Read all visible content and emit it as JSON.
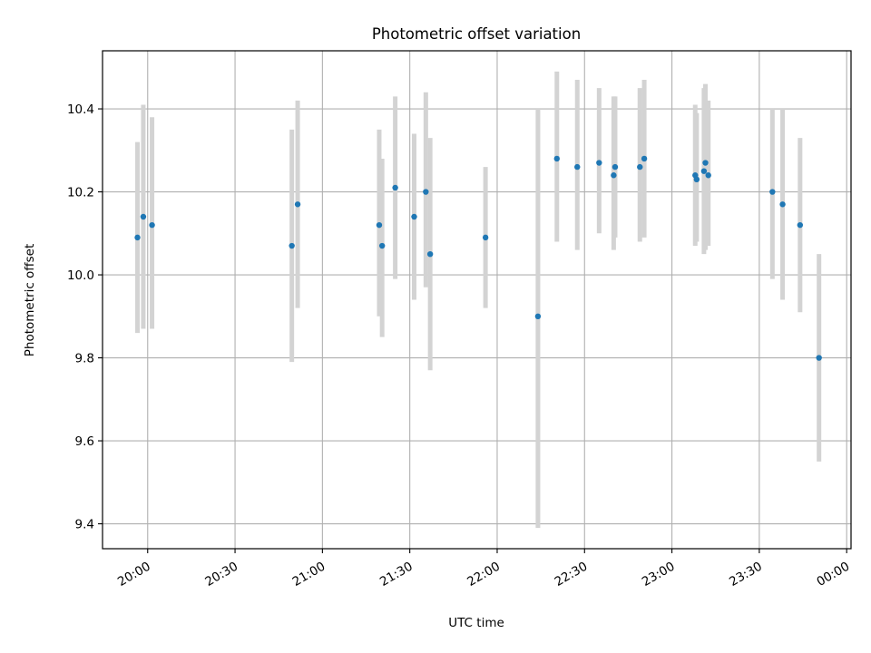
{
  "chart_data": {
    "type": "scatter",
    "title": "Photometric offset variation",
    "xlabel": "UTC time",
    "ylabel": "Photometric offset",
    "grid": true,
    "x_unit": "minutes since 20:00 UTC",
    "xlim": [
      -15.5,
      241.5
    ],
    "ylim": [
      9.34,
      10.54
    ],
    "xticks": [
      {
        "value": 0,
        "label": "20:00"
      },
      {
        "value": 30,
        "label": "20:30"
      },
      {
        "value": 60,
        "label": "21:00"
      },
      {
        "value": 90,
        "label": "21:30"
      },
      {
        "value": 120,
        "label": "22:00"
      },
      {
        "value": 150,
        "label": "22:30"
      },
      {
        "value": 180,
        "label": "23:00"
      },
      {
        "value": 210,
        "label": "23:30"
      },
      {
        "value": 240,
        "label": "00:00"
      }
    ],
    "yticks": [
      {
        "value": 9.4,
        "label": "9.4"
      },
      {
        "value": 9.6,
        "label": "9.6"
      },
      {
        "value": 9.8,
        "label": "9.8"
      },
      {
        "value": 10.0,
        "label": "10.0"
      },
      {
        "value": 10.2,
        "label": "10.2"
      },
      {
        "value": 10.4,
        "label": "10.4"
      }
    ],
    "point_color": "#1f77b4",
    "errorbar_color": "#d3d3d3",
    "points": [
      {
        "x": -3.5,
        "y": 10.09,
        "ylo": 9.86,
        "yhi": 10.32
      },
      {
        "x": -1.5,
        "y": 10.14,
        "ylo": 9.87,
        "yhi": 10.41
      },
      {
        "x": 1.5,
        "y": 10.12,
        "ylo": 9.87,
        "yhi": 10.38
      },
      {
        "x": 49.5,
        "y": 10.07,
        "ylo": 9.79,
        "yhi": 10.35
      },
      {
        "x": 51.5,
        "y": 10.17,
        "ylo": 9.92,
        "yhi": 10.42
      },
      {
        "x": 79.5,
        "y": 10.12,
        "ylo": 9.9,
        "yhi": 10.35
      },
      {
        "x": 80.5,
        "y": 10.07,
        "ylo": 9.85,
        "yhi": 10.28
      },
      {
        "x": 85.0,
        "y": 10.21,
        "ylo": 9.99,
        "yhi": 10.43
      },
      {
        "x": 91.5,
        "y": 10.14,
        "ylo": 9.94,
        "yhi": 10.34
      },
      {
        "x": 95.5,
        "y": 10.2,
        "ylo": 9.97,
        "yhi": 10.44
      },
      {
        "x": 97.0,
        "y": 10.05,
        "ylo": 9.77,
        "yhi": 10.33
      },
      {
        "x": 116.0,
        "y": 10.09,
        "ylo": 9.92,
        "yhi": 10.26
      },
      {
        "x": 134.0,
        "y": 9.9,
        "ylo": 9.39,
        "yhi": 10.4
      },
      {
        "x": 140.5,
        "y": 10.28,
        "ylo": 10.08,
        "yhi": 10.49
      },
      {
        "x": 147.5,
        "y": 10.26,
        "ylo": 10.06,
        "yhi": 10.47
      },
      {
        "x": 155.0,
        "y": 10.27,
        "ylo": 10.1,
        "yhi": 10.45
      },
      {
        "x": 160.0,
        "y": 10.24,
        "ylo": 10.06,
        "yhi": 10.43
      },
      {
        "x": 160.5,
        "y": 10.26,
        "ylo": 10.09,
        "yhi": 10.43
      },
      {
        "x": 169.0,
        "y": 10.26,
        "ylo": 10.08,
        "yhi": 10.45
      },
      {
        "x": 170.5,
        "y": 10.28,
        "ylo": 10.09,
        "yhi": 10.47
      },
      {
        "x": 188.0,
        "y": 10.24,
        "ylo": 10.07,
        "yhi": 10.41
      },
      {
        "x": 188.5,
        "y": 10.23,
        "ylo": 10.08,
        "yhi": 10.39
      },
      {
        "x": 191.0,
        "y": 10.25,
        "ylo": 10.05,
        "yhi": 10.45
      },
      {
        "x": 191.5,
        "y": 10.27,
        "ylo": 10.06,
        "yhi": 10.46
      },
      {
        "x": 192.5,
        "y": 10.24,
        "ylo": 10.07,
        "yhi": 10.42
      },
      {
        "x": 214.5,
        "y": 10.2,
        "ylo": 9.99,
        "yhi": 10.4
      },
      {
        "x": 218.0,
        "y": 10.17,
        "ylo": 9.94,
        "yhi": 10.4
      },
      {
        "x": 224.0,
        "y": 10.12,
        "ylo": 9.91,
        "yhi": 10.33
      },
      {
        "x": 230.5,
        "y": 9.8,
        "ylo": 9.55,
        "yhi": 10.05
      }
    ]
  }
}
